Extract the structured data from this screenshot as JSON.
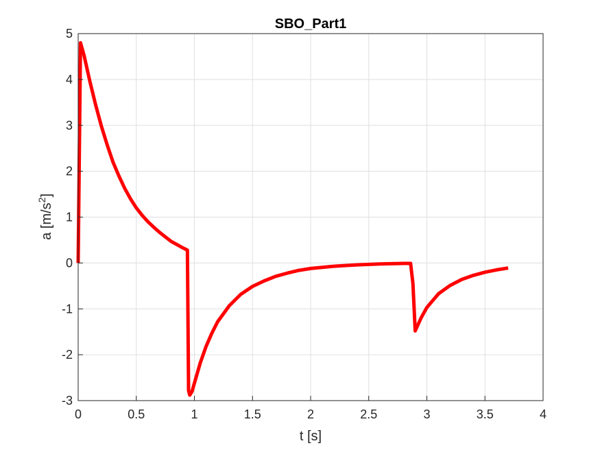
{
  "chart_data": {
    "type": "line",
    "title": "SBO_Part1",
    "xlabel": "t [s]",
    "ylabel_base": "a [m/s",
    "ylabel_sup": "2",
    "ylabel_end": "]",
    "xlim": [
      0,
      4
    ],
    "ylim": [
      -3,
      5
    ],
    "xticks": [
      0,
      0.5,
      1,
      1.5,
      2,
      2.5,
      3,
      3.5,
      4
    ],
    "xtick_labels": [
      "0",
      "0.5",
      "1",
      "1.5",
      "2",
      "2.5",
      "3",
      "3.5",
      "4"
    ],
    "yticks": [
      -3,
      -2,
      -1,
      0,
      1,
      2,
      3,
      4,
      5
    ],
    "ytick_labels": [
      "-3",
      "-2",
      "-1",
      "0",
      "1",
      "2",
      "3",
      "4",
      "5"
    ],
    "grid": true,
    "series": [
      {
        "color": "#ff0000",
        "x": [
          0,
          0.02,
          0.05,
          0.1,
          0.15,
          0.2,
          0.25,
          0.3,
          0.35,
          0.4,
          0.45,
          0.5,
          0.55,
          0.6,
          0.65,
          0.7,
          0.75,
          0.8,
          0.85,
          0.9,
          0.94,
          0.95,
          0.96,
          0.98,
          1.0,
          1.05,
          1.1,
          1.15,
          1.2,
          1.3,
          1.4,
          1.5,
          1.6,
          1.7,
          1.8,
          1.9,
          2.0,
          2.2,
          2.4,
          2.6,
          2.8,
          2.86,
          2.88,
          2.9,
          2.95,
          3.0,
          3.1,
          3.2,
          3.3,
          3.4,
          3.5,
          3.6,
          3.7
        ],
        "y": [
          0,
          4.8,
          4.53,
          3.97,
          3.45,
          2.98,
          2.57,
          2.2,
          1.9,
          1.63,
          1.4,
          1.2,
          1.04,
          0.9,
          0.78,
          0.67,
          0.57,
          0.47,
          0.4,
          0.33,
          0.28,
          -2.78,
          -2.88,
          -2.8,
          -2.62,
          -2.18,
          -1.82,
          -1.53,
          -1.28,
          -0.93,
          -0.68,
          -0.51,
          -0.39,
          -0.29,
          -0.22,
          -0.16,
          -0.12,
          -0.07,
          -0.04,
          -0.02,
          -0.01,
          -0.01,
          -0.45,
          -1.48,
          -1.2,
          -0.97,
          -0.67,
          -0.49,
          -0.36,
          -0.27,
          -0.2,
          -0.15,
          -0.11
        ]
      }
    ]
  }
}
